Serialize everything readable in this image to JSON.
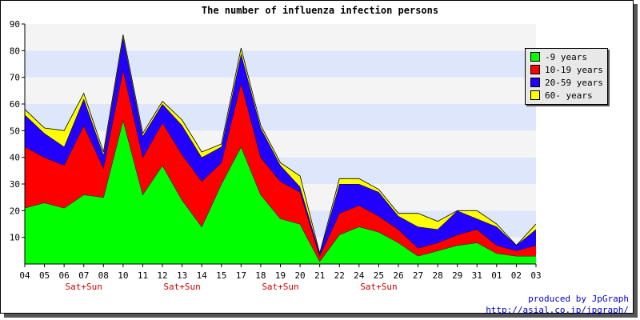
{
  "chart_data": {
    "type": "area",
    "stacked": true,
    "title": "The number of influenza infection persons",
    "xlabel": "",
    "ylabel": "",
    "ylim": [
      0,
      90
    ],
    "yticks": [
      10,
      20,
      30,
      40,
      50,
      60,
      70,
      80,
      90
    ],
    "grid": "horizontal bands",
    "legend_position": "right",
    "categories": [
      "04",
      "05",
      "06",
      "07",
      "08",
      "10",
      "11",
      "12",
      "13",
      "14",
      "15",
      "17",
      "18",
      "19",
      "20",
      "21",
      "22",
      "24",
      "25",
      "26",
      "27",
      "28",
      "29",
      "31",
      "01",
      "02",
      "03"
    ],
    "weekend_labels": [
      {
        "category": "07",
        "text": "Sat+Sun"
      },
      {
        "category": "13",
        "text": "Sat+Sun"
      },
      {
        "category": "19",
        "text": "Sat+Sun"
      },
      {
        "category": "25",
        "text": "Sat+Sun"
      }
    ],
    "series": [
      {
        "name": "-9 years",
        "color": "#00ff00",
        "values": [
          21,
          23,
          21,
          26,
          25,
          54,
          26,
          37,
          24,
          14,
          30,
          44,
          26,
          17,
          15,
          1,
          11,
          14,
          12,
          8,
          3,
          5,
          7,
          8,
          4,
          3,
          3
        ]
      },
      {
        "name": "10-19 years",
        "color": "#ff0000",
        "values": [
          23,
          17,
          16,
          26,
          11,
          19,
          14,
          16,
          17,
          17,
          8,
          24,
          14,
          14,
          12,
          2,
          8,
          8,
          6,
          5,
          3,
          3,
          4,
          5,
          3,
          2,
          4
        ]
      },
      {
        "name": "20-59 years",
        "color": "#2200ff",
        "values": [
          12,
          9,
          7,
          10,
          5,
          12,
          8,
          7,
          11,
          9,
          6,
          11,
          11,
          6,
          2,
          1,
          11,
          8,
          9,
          5,
          8,
          5,
          9,
          4,
          7,
          2,
          6
        ]
      },
      {
        "name": "60- years",
        "color": "#ffff00",
        "values": [
          2,
          2,
          6,
          2,
          1,
          1,
          1,
          1,
          2,
          2,
          1,
          2,
          1,
          1,
          4,
          0,
          2,
          2,
          1,
          1,
          5,
          3,
          0,
          3,
          1,
          0,
          2
        ]
      }
    ]
  },
  "credits": {
    "line1": "produced by JpGraph",
    "line2": "http://asial.co.jp/jpgraph/"
  }
}
